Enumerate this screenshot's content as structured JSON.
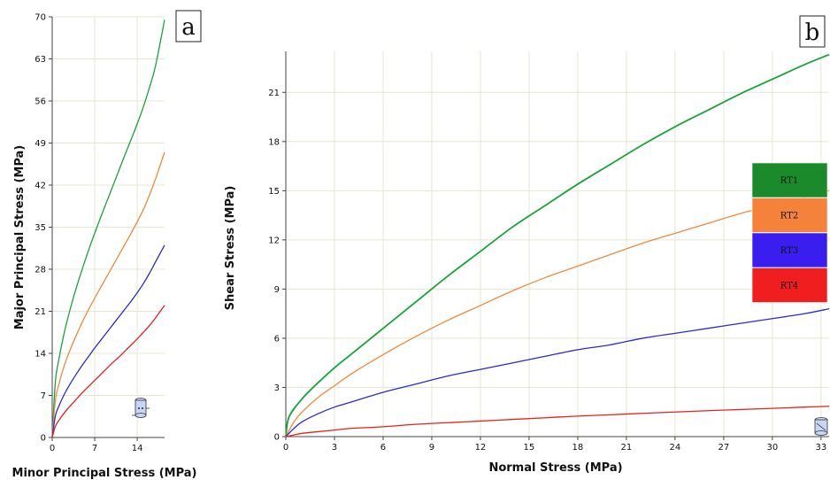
{
  "chart_data": [
    {
      "panel": "a",
      "type": "line",
      "xlabel": "Minor Principal Stress (MPa)",
      "ylabel": "Major Principal Stress (MPa)",
      "xlim": [
        0,
        18.5
      ],
      "ylim": [
        0,
        70
      ],
      "xticks": [
        0,
        7,
        14
      ],
      "yticks": [
        0,
        7,
        14,
        21,
        28,
        35,
        42,
        49,
        56,
        63,
        70
      ],
      "grid": true,
      "series": [
        {
          "color": "#1aa33a",
          "x": [
            0,
            0.5,
            1,
            2,
            3,
            4,
            5,
            6,
            7,
            8,
            9,
            10,
            11,
            12,
            13,
            14,
            15,
            16,
            17,
            18.5
          ],
          "y": [
            0,
            9,
            12.5,
            17.5,
            21.5,
            25,
            28.2,
            31.2,
            34,
            36.7,
            39.3,
            41.9,
            44.5,
            47.1,
            49.6,
            52.2,
            55,
            58.2,
            61.8,
            69.5
          ]
        },
        {
          "color": "#f08a3c",
          "x": [
            0,
            0.5,
            1,
            2,
            3,
            4,
            5,
            6,
            7,
            8,
            9,
            10,
            11,
            12,
            13,
            14,
            15,
            16,
            17,
            18.5
          ],
          "y": [
            0,
            6,
            8.5,
            12,
            14.7,
            17.1,
            19.3,
            21.3,
            23.2,
            25,
            26.8,
            28.6,
            30.4,
            32.2,
            34,
            35.9,
            37.9,
            40.3,
            43,
            47.5
          ]
        },
        {
          "color": "#2a2ad6",
          "x": [
            0,
            0.5,
            1,
            2,
            3,
            4,
            5,
            6,
            7,
            8,
            9,
            10,
            11,
            12,
            13,
            14,
            15,
            16,
            17,
            18.5
          ],
          "y": [
            0,
            3.5,
            5,
            7.2,
            9,
            10.6,
            12.1,
            13.5,
            14.9,
            16.2,
            17.5,
            18.8,
            20.1,
            21.4,
            22.7,
            24.1,
            25.6,
            27.3,
            29.2,
            32
          ]
        },
        {
          "color": "#e8211c",
          "x": [
            0,
            0.5,
            1,
            2,
            3,
            4,
            5,
            6,
            7,
            8,
            9,
            10,
            11,
            12,
            13,
            14,
            15,
            16,
            17,
            18.5
          ],
          "y": [
            0,
            1.8,
            2.7,
            4.1,
            5.3,
            6.4,
            7.5,
            8.5,
            9.5,
            10.5,
            11.5,
            12.5,
            13.4,
            14.4,
            15.4,
            16.4,
            17.5,
            18.6,
            19.9,
            22
          ]
        }
      ]
    },
    {
      "panel": "b",
      "type": "line",
      "xlabel": "Normal Stress (MPa)",
      "ylabel": "Shear Stress (MPa)",
      "xlim": [
        0,
        33.5
      ],
      "ylim": [
        0,
        23.5
      ],
      "xticks": [
        0,
        3,
        6,
        9,
        12,
        15,
        18,
        21,
        24,
        27,
        30,
        33
      ],
      "yticks": [
        0,
        3,
        6,
        9,
        12,
        15,
        18,
        21
      ],
      "grid": true,
      "legend": {
        "placement": "right",
        "entries": [
          "RT1",
          "RT2",
          "RT3",
          "RT4"
        ]
      },
      "series": [
        {
          "name": "RT1",
          "color": "#1aa33a",
          "x": [
            0,
            0.2,
            1,
            2,
            3,
            4,
            6,
            8,
            10,
            12,
            14,
            16,
            18,
            20,
            22,
            24,
            26,
            28,
            30,
            32,
            33.5
          ],
          "y": [
            0,
            1.2,
            2.3,
            3.3,
            4.2,
            5,
            6.6,
            8.2,
            9.8,
            11.3,
            12.8,
            14.1,
            15.4,
            16.6,
            17.8,
            18.9,
            19.9,
            20.9,
            21.8,
            22.7,
            23.3
          ]
        },
        {
          "name": "RT2",
          "color": "#f08a3c",
          "x": [
            0,
            0.5,
            1,
            2,
            3,
            4,
            6,
            8,
            10,
            12,
            14,
            16,
            18,
            20,
            22,
            24,
            26,
            28,
            30,
            32,
            33.5
          ],
          "y": [
            0,
            0.9,
            1.5,
            2.4,
            3.1,
            3.8,
            5,
            6.1,
            7.1,
            8,
            8.9,
            9.7,
            10.4,
            11.1,
            11.8,
            12.4,
            13,
            13.6,
            14.1,
            14.6,
            15
          ]
        },
        {
          "name": "RT3",
          "color": "#2a2ad6",
          "x": [
            0,
            0.5,
            1,
            2,
            3,
            4,
            6,
            8,
            10,
            12,
            14,
            16,
            18,
            20,
            22,
            24,
            26,
            28,
            30,
            32,
            33.5
          ],
          "y": [
            0,
            0.5,
            0.9,
            1.4,
            1.8,
            2.1,
            2.7,
            3.2,
            3.7,
            4.1,
            4.5,
            4.9,
            5.3,
            5.6,
            6,
            6.3,
            6.6,
            6.9,
            7.2,
            7.5,
            7.8
          ]
        },
        {
          "name": "RT4",
          "color": "#e8211c",
          "x": [
            0,
            0.5,
            1,
            2,
            3,
            4,
            6,
            8,
            10,
            12,
            14,
            16,
            18,
            20,
            22,
            24,
            26,
            28,
            30,
            32,
            33.5
          ],
          "y": [
            0,
            0.1,
            0.2,
            0.3,
            0.4,
            0.5,
            0.6,
            0.75,
            0.85,
            0.95,
            1.05,
            1.15,
            1.25,
            1.33,
            1.42,
            1.5,
            1.58,
            1.65,
            1.72,
            1.8,
            1.85
          ]
        }
      ]
    }
  ],
  "panels": {
    "a_letter": "a",
    "b_letter": "b"
  },
  "legend": {
    "items": [
      {
        "label": "RT1",
        "color": "#1a8a2a"
      },
      {
        "label": "RT2",
        "color": "#f4823a"
      },
      {
        "label": "RT3",
        "color": "#3a1ef0"
      },
      {
        "label": "RT4",
        "color": "#f01e1e"
      }
    ]
  },
  "icons": {
    "panel_a": "cylinder-sample-icon",
    "panel_b": "shear-sample-icon"
  }
}
